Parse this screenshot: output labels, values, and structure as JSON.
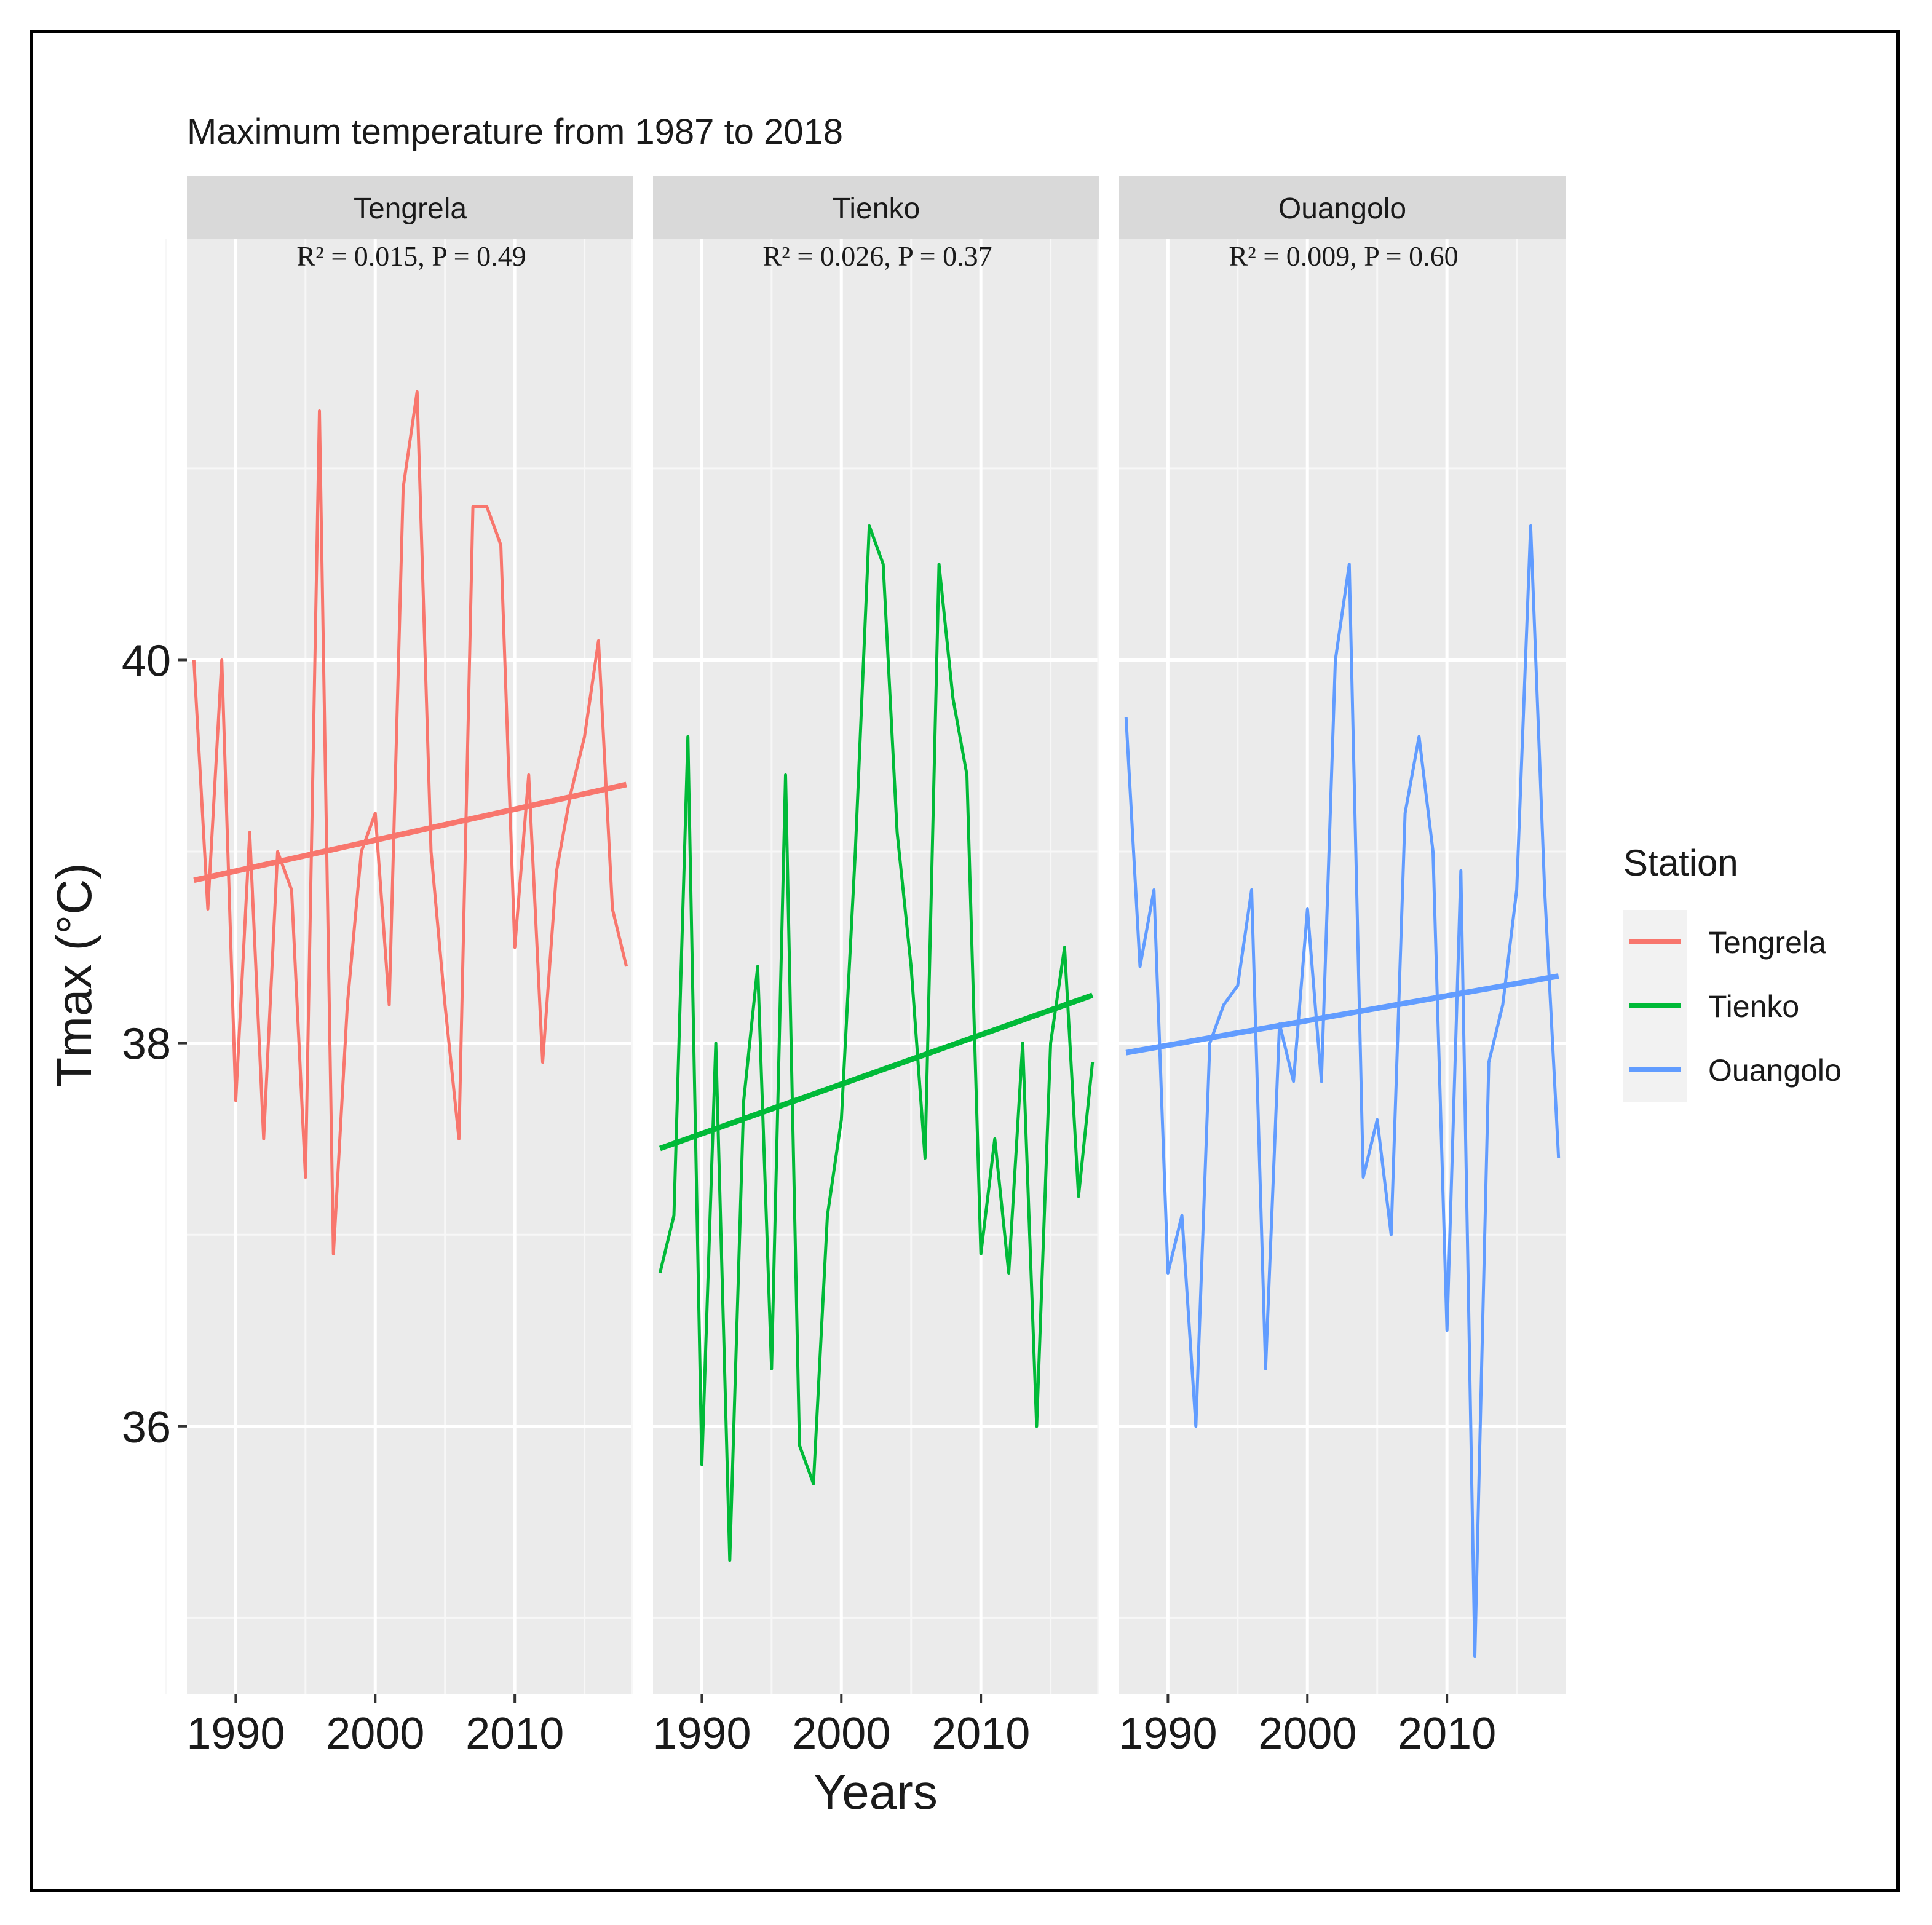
{
  "chart_data": {
    "type": "line",
    "title": "Maximum temperature from 1987 to 2018",
    "xlabel": "Years",
    "ylabel": "Tmax (°C)",
    "xlim": [
      1986.5,
      2018.5
    ],
    "ylim": [
      34.6,
      42.2
    ],
    "x_ticks": [
      1990,
      2000,
      2010
    ],
    "y_ticks": [
      36,
      38,
      40
    ],
    "grid": true,
    "legend": {
      "title": "Station",
      "position": "right"
    },
    "x": [
      1987,
      1988,
      1989,
      1990,
      1991,
      1992,
      1993,
      1994,
      1995,
      1996,
      1997,
      1998,
      1999,
      2000,
      2001,
      2002,
      2003,
      2004,
      2005,
      2006,
      2007,
      2008,
      2009,
      2010,
      2011,
      2012,
      2013,
      2014,
      2015,
      2016,
      2017,
      2018
    ],
    "panels": [
      {
        "name": "Tengrela",
        "color": "#F8766D",
        "annotation": "R² = 0.015, P = 0.49",
        "values": [
          40.0,
          38.7,
          40.0,
          37.7,
          39.1,
          37.5,
          39.0,
          38.8,
          37.3,
          41.3,
          36.9,
          38.2,
          39.0,
          39.2,
          38.2,
          40.9,
          41.4,
          39.0,
          38.2,
          37.5,
          40.8,
          40.8,
          40.6,
          38.5,
          39.4,
          37.9,
          38.9,
          39.3,
          39.6,
          40.1,
          38.7,
          38.4
        ],
        "trend": [
          38.85,
          39.35
        ]
      },
      {
        "name": "Tienko",
        "color": "#00BA38",
        "annotation": "R² = 0.026, P = 0.37",
        "values": [
          36.8,
          37.1,
          39.6,
          35.8,
          38.0,
          35.3,
          37.7,
          38.4,
          36.3,
          39.4,
          35.9,
          35.7,
          37.1,
          37.6,
          39.0,
          40.7,
          40.5,
          39.1,
          38.4,
          37.4,
          40.5,
          39.8,
          39.4,
          36.9,
          37.5,
          36.8,
          38.0,
          36.0,
          38.0,
          38.5,
          37.2,
          37.9
        ],
        "trend": [
          37.45,
          38.25
        ]
      },
      {
        "name": "Ouangolo",
        "color": "#619CFF",
        "annotation": "R² = 0.009, P = 0.60",
        "values": [
          39.7,
          38.4,
          38.8,
          36.8,
          37.1,
          36.0,
          38.0,
          38.2,
          38.3,
          38.8,
          36.3,
          38.1,
          37.8,
          38.7,
          37.8,
          40.0,
          40.5,
          37.3,
          37.6,
          37.0,
          39.2,
          39.6,
          39.0,
          36.5,
          38.9,
          34.8,
          37.9,
          38.2,
          38.8,
          40.7,
          38.8,
          37.4
        ],
        "trend": [
          37.95,
          38.35
        ]
      }
    ]
  }
}
